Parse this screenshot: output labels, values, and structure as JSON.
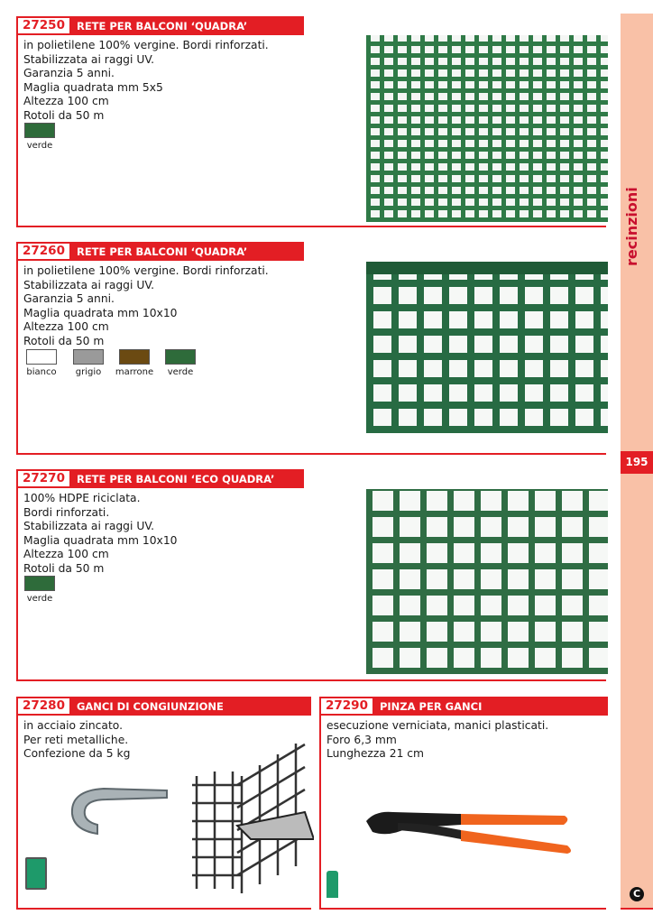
{
  "products": [
    {
      "code": "27250",
      "title": "RETE PER BALCONI ‘QUADRA’",
      "description": "in polietilene 100% vergine. Bordi rinforzati.\nStabilizzata ai raggi UV.\nGaranzia 5 anni.\nMaglia quadrata mm 5x5\nAltezza 100 cm\nRotoli da 50 m",
      "colors": [
        {
          "label": "verde",
          "hex": "#2e6b3a"
        }
      ]
    },
    {
      "code": "27260",
      "title": "RETE PER BALCONI ‘QUADRA’",
      "description": "in polietilene 100% vergine. Bordi rinforzati.\nStabilizzata ai raggi UV.\nGaranzia 5 anni.\nMaglia quadrata mm 10x10\nAltezza 100 cm\nRotoli da 50 m",
      "colors": [
        {
          "label": "bianco",
          "hex": "#ffffff"
        },
        {
          "label": "grigio",
          "hex": "#9a9a9a"
        },
        {
          "label": "marrone",
          "hex": "#6b4a12"
        },
        {
          "label": "verde",
          "hex": "#2e6b3a"
        }
      ]
    },
    {
      "code": "27270",
      "title": "RETE PER BALCONI ‘ECO QUADRA’",
      "description": "100% HDPE riciclata.\nBordi rinforzati.\nStabilizzata ai raggi UV.\nMaglia quadrata mm 10x10\nAltezza 100 cm\nRotoli da 50 m",
      "colors": [
        {
          "label": "verde",
          "hex": "#2e6b3a"
        }
      ]
    },
    {
      "code": "27280",
      "title": "GANCI DI CONGIUNZIONE",
      "description": "in acciaio zincato.\nPer reti metalliche.\nConfezione da 5 kg"
    },
    {
      "code": "27290",
      "title": "PINZA PER GANCI",
      "description": "esecuzione verniciata, manici plasticati.\nForo 6,3 mm\nLunghezza 21 cm"
    }
  ],
  "sidebar": {
    "section": "recinzioni",
    "page_number": "195",
    "logo_letter": "C"
  },
  "accent": "#e31e24"
}
